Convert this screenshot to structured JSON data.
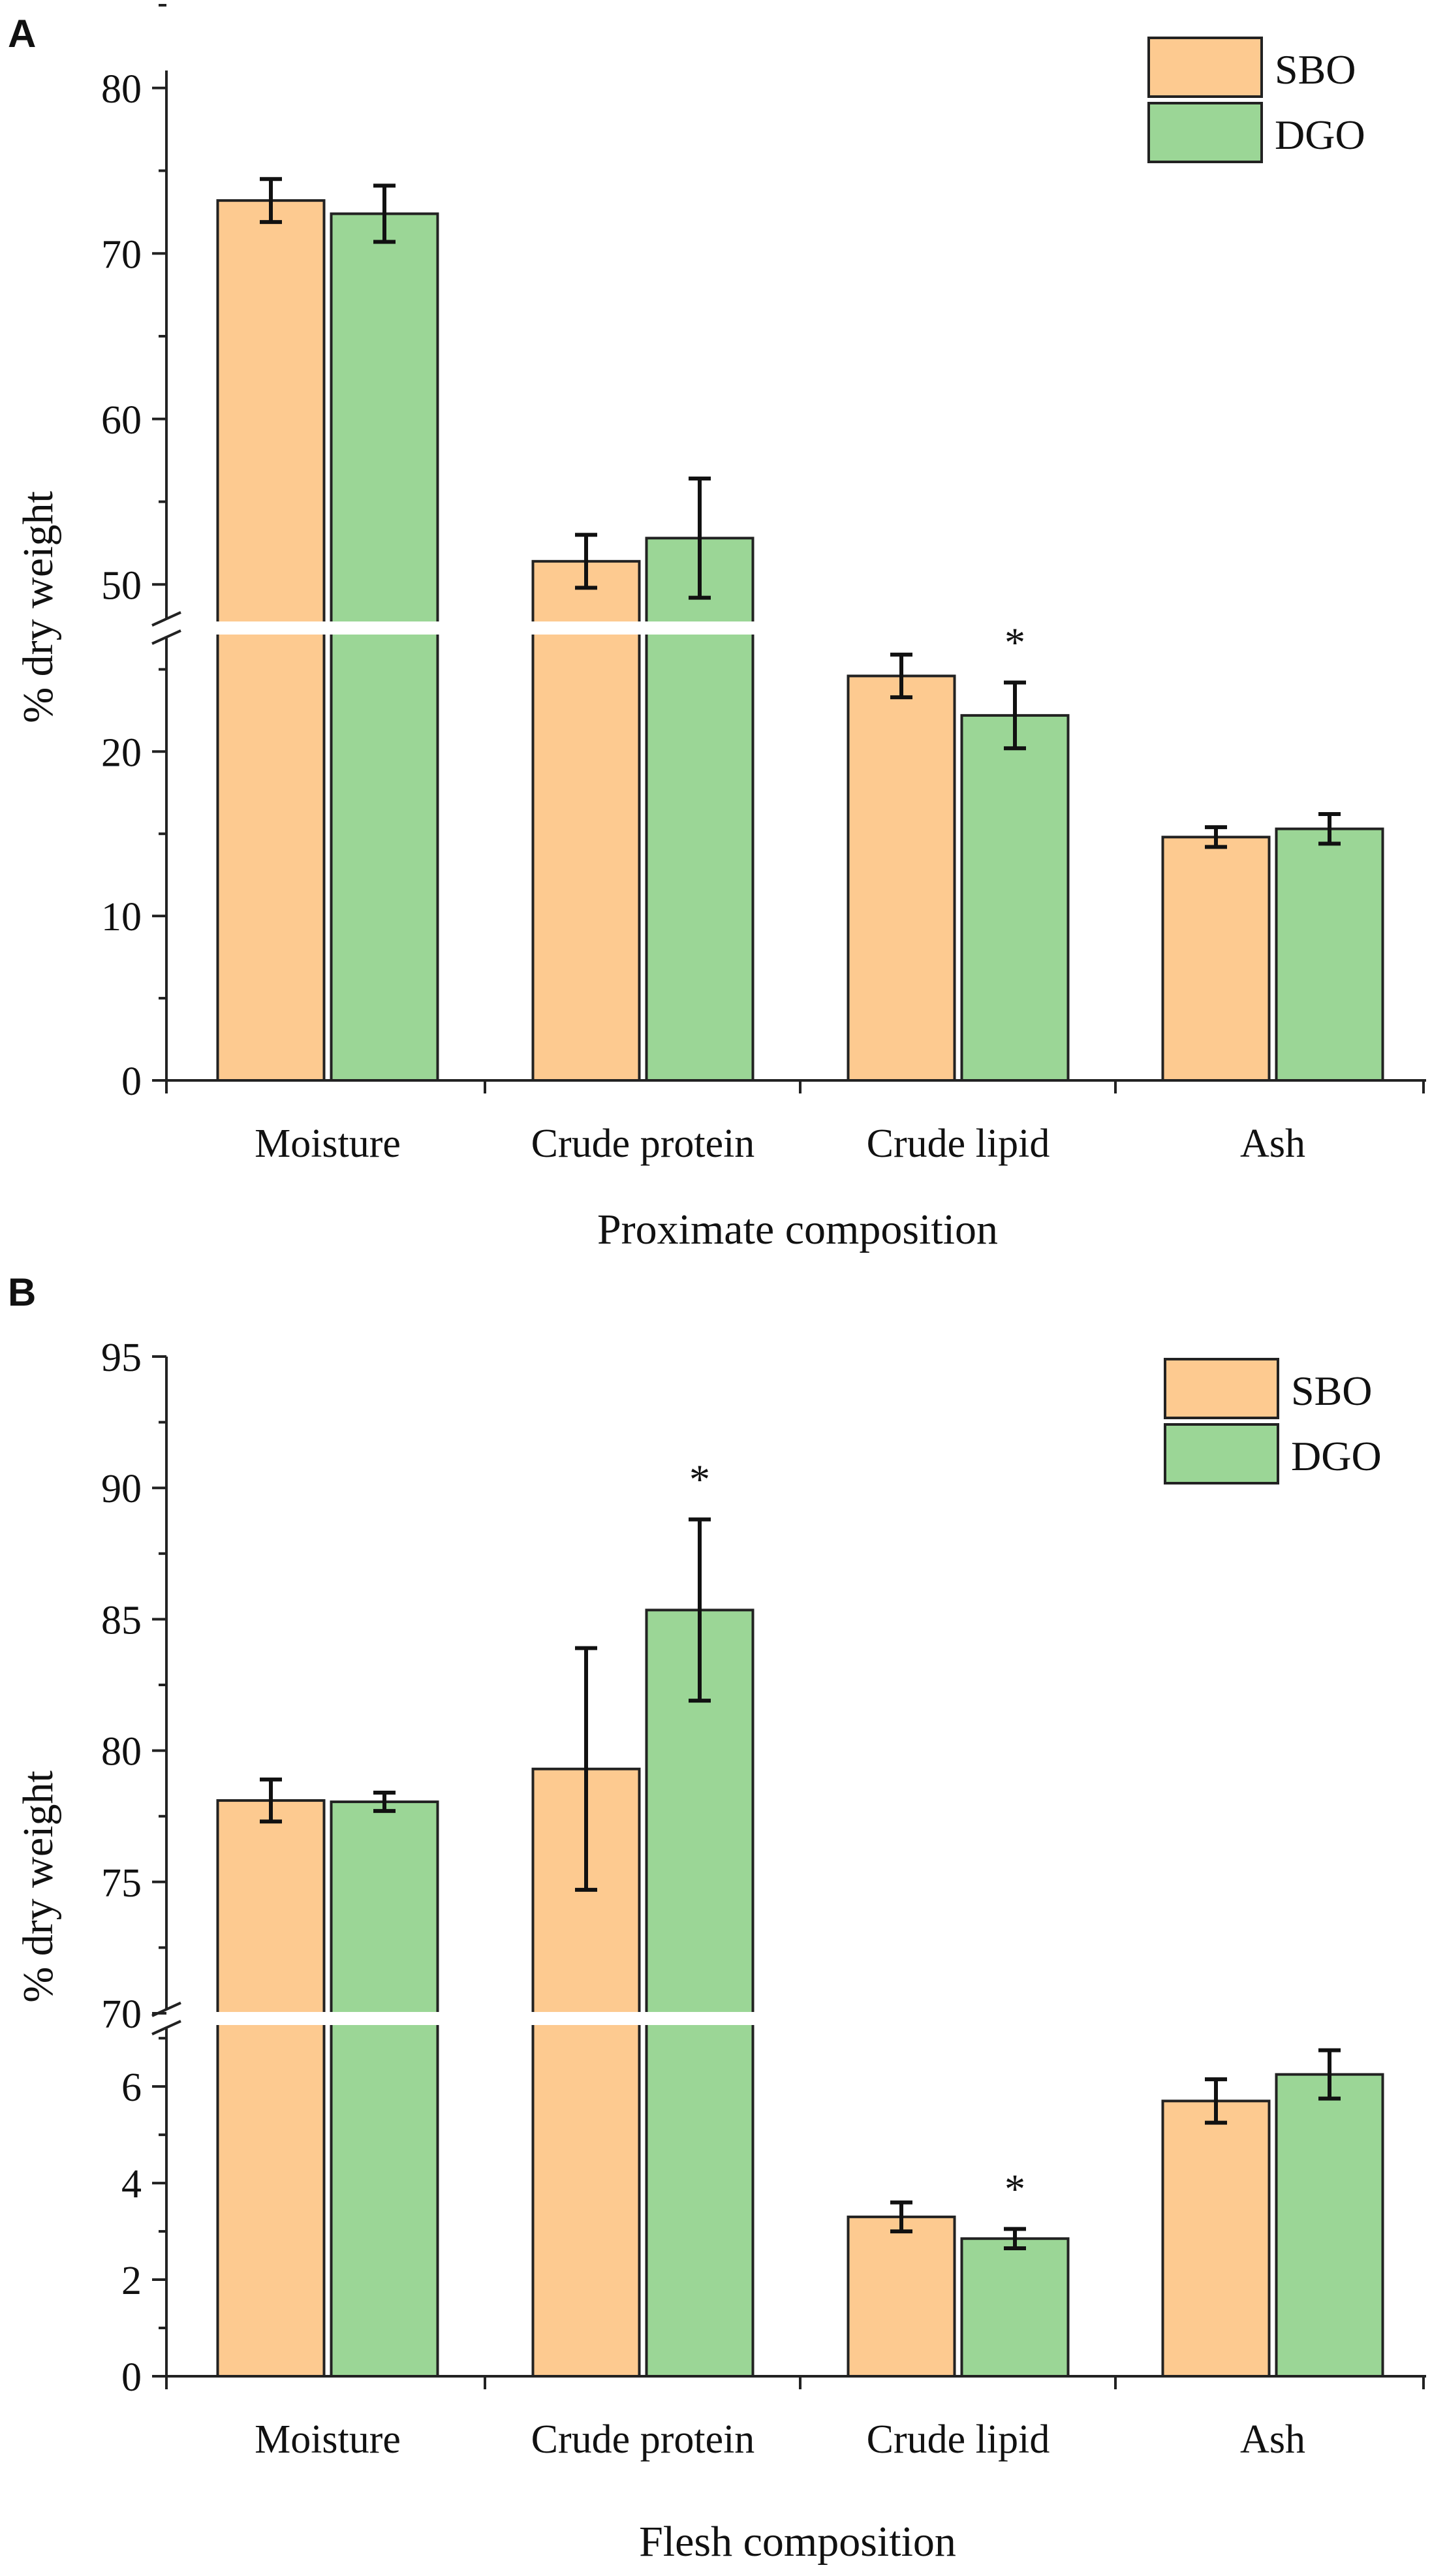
{
  "colors": {
    "sbo": "#FDCA90",
    "dgo": "#9BD696",
    "axis": "#222222",
    "background": "#ffffff"
  },
  "chart_data": [
    {
      "panel": "A",
      "type": "bar",
      "xlabel": "Proximate composition",
      "ylabel": "% dry weight",
      "categories": [
        "Moisture",
        "Crude protein",
        "Crude lipid",
        "Ash"
      ],
      "series": [
        {
          "name": "SBO",
          "values": [
            73.2,
            51.4,
            24.6,
            14.8
          ],
          "errors": [
            1.3,
            1.6,
            1.3,
            0.6
          ]
        },
        {
          "name": "DGO",
          "values": [
            72.4,
            52.8,
            22.2,
            15.3
          ],
          "errors": [
            1.7,
            3.6,
            2.0,
            0.9
          ]
        }
      ],
      "significance": [
        {
          "category": "Crude lipid",
          "series": "DGO",
          "label": "*"
        }
      ],
      "axis_break": {
        "lower_range": [
          0,
          27
        ],
        "upper_range": [
          48,
          85
        ]
      },
      "lower_ticks": [
        0,
        10,
        20
      ],
      "upper_ticks": [
        50,
        60,
        70,
        80
      ],
      "legend": {
        "position": "top-right",
        "entries": [
          "SBO",
          "DGO"
        ]
      }
    },
    {
      "panel": "B",
      "type": "bar",
      "xlabel": "Flesh composition",
      "ylabel": "% dry weight",
      "categories": [
        "Moisture",
        "Crude protein",
        "Crude lipid",
        "Ash"
      ],
      "series": [
        {
          "name": "SBO",
          "values": [
            78.1,
            79.3,
            3.3,
            5.7
          ],
          "errors": [
            0.8,
            4.6,
            0.3,
            0.45
          ]
        },
        {
          "name": "DGO",
          "values": [
            78.05,
            85.35,
            2.85,
            6.25
          ],
          "errors": [
            0.35,
            3.45,
            0.2,
            0.5
          ]
        }
      ],
      "significance": [
        {
          "category": "Crude protein",
          "series": "DGO",
          "label": "*"
        },
        {
          "category": "Crude lipid",
          "series": "DGO",
          "label": "*"
        }
      ],
      "axis_break": {
        "lower_range": [
          0,
          7.3
        ],
        "upper_range": [
          70,
          95
        ]
      },
      "lower_ticks": [
        0,
        2,
        4,
        6
      ],
      "upper_ticks": [
        70,
        75,
        80,
        85,
        90,
        95
      ],
      "legend": {
        "position": "top-right",
        "entries": [
          "SBO",
          "DGO"
        ]
      }
    }
  ]
}
